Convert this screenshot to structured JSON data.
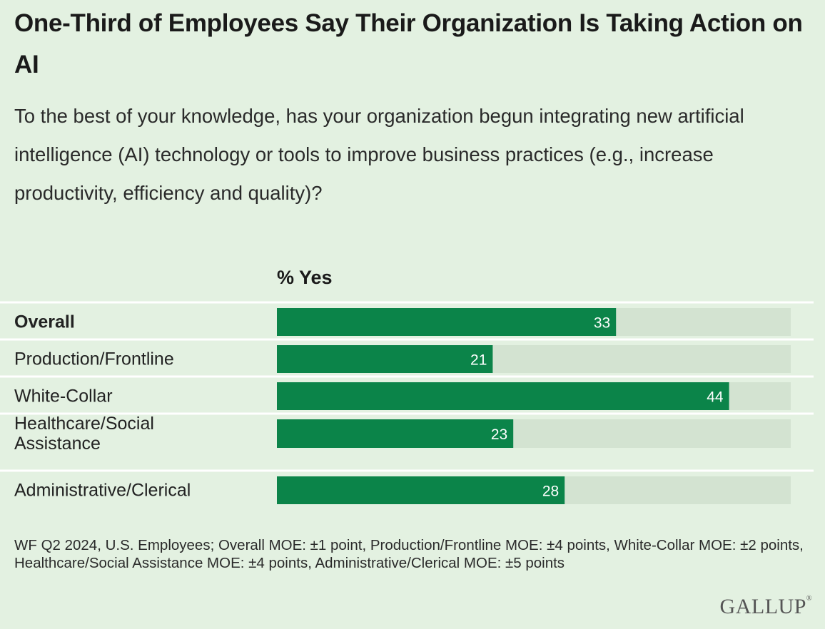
{
  "header": {
    "title": "One-Third of Employees Say Their Organization Is Taking Action on AI",
    "subtitle": "To the best of your knowledge, has your organization begun integrating new artificial intelligence (AI) technology or tools to improve business practices (e.g., increase productivity, efficiency and quality)?"
  },
  "chart_data": {
    "type": "bar",
    "orientation": "horizontal",
    "value_header": "% Yes",
    "categories": [
      "Overall",
      "Production/Frontline",
      "White-Collar",
      "Healthcare/Social Assistance",
      "Administrative/Clerical"
    ],
    "category_lines": [
      [
        "Overall"
      ],
      [
        "Production/Frontline"
      ],
      [
        "White-Collar"
      ],
      [
        "Healthcare/Social",
        "Assistance"
      ],
      [
        "Administrative/Clerical"
      ]
    ],
    "bold_categories": [
      "Overall"
    ],
    "values": [
      33,
      21,
      44,
      23,
      28
    ],
    "xlim": [
      0,
      50
    ],
    "bar_color": "#0b8449",
    "track_color": "#d3e3d1",
    "separator_color": "#ffffff"
  },
  "footnote": "WF Q2 2024, U.S. Employees; Overall MOE: ±1 point, Production/Frontline MOE: ±4 points, White-Collar MOE: ±2 points, Healthcare/Social Assistance MOE: ±4 points, Administrative/Clerical MOE: ±5 points",
  "logo_text": "GALLUP"
}
